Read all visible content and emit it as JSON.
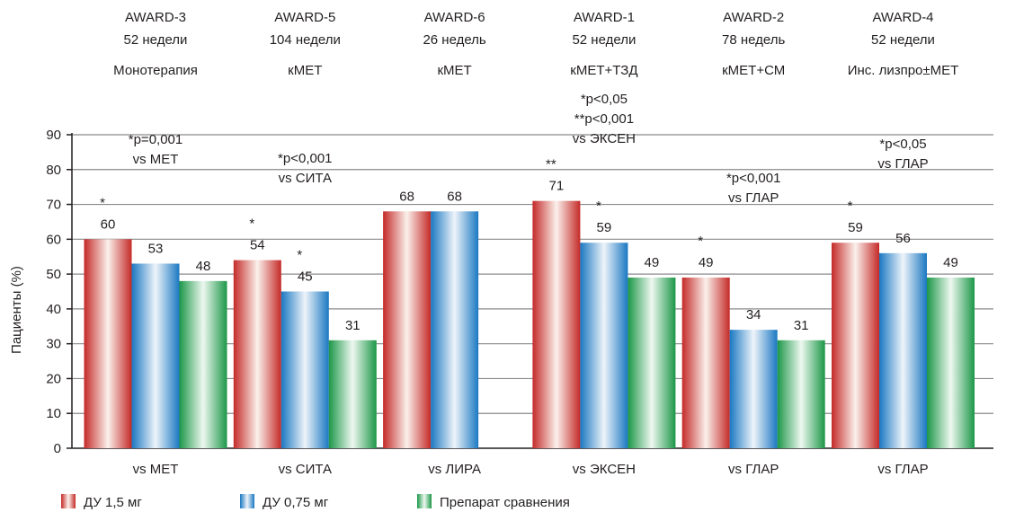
{
  "chart_data": {
    "type": "bar",
    "ylabel": "Пациенты (%)",
    "ylim": [
      0,
      90
    ],
    "yticks": [
      "0",
      "10",
      "20",
      "30",
      "40",
      "50",
      "60",
      "70",
      "80",
      "90"
    ],
    "grid": true,
    "legend_placement": "bottom-left",
    "series": [
      {
        "name": "ДУ 1,5 мг",
        "color": "#c8302e"
      },
      {
        "name": "ДУ 0,75 мг",
        "color": "#1d7cc4"
      },
      {
        "name": "Препарат сравнения",
        "color": "#1f9a4c"
      }
    ],
    "groups": [
      {
        "study": "AWARD-3",
        "duration": "52 недели",
        "therapy": "Монотерапия",
        "category": "vs МЕТ",
        "annotation": [
          "*p=0,001",
          "vs МЕТ"
        ],
        "bars": [
          {
            "series": 0,
            "value": 60,
            "label": "60",
            "mark": "*"
          },
          {
            "series": 1,
            "value": 53,
            "label": "53"
          },
          {
            "series": 2,
            "value": 48,
            "label": "48"
          }
        ]
      },
      {
        "study": "AWARD-5",
        "duration": "104 недели",
        "therapy": "кМЕТ",
        "category": "vs СИТА",
        "annotation": [
          "*p<0,001",
          "vs СИТА"
        ],
        "bars": [
          {
            "series": 0,
            "value": 54,
            "label": "54",
            "mark": "*"
          },
          {
            "series": 1,
            "value": 45,
            "label": "45",
            "mark": "*"
          },
          {
            "series": 2,
            "value": 31,
            "label": "31"
          }
        ]
      },
      {
        "study": "AWARD-6",
        "duration": "26 недель",
        "therapy": "кМЕТ",
        "category": "vs ЛИРА",
        "annotation": [],
        "bars": [
          {
            "series": 0,
            "value": 68,
            "label": "68"
          },
          {
            "series": 1,
            "value": 68,
            "label": "68"
          }
        ]
      },
      {
        "study": "AWARD-1",
        "duration": "52 недели",
        "therapy": "кМЕТ+ТЗД",
        "category": "vs ЭКСЕН",
        "annotation": [
          "*p<0,05",
          "**p<0,001",
          "vs ЭКСЕН"
        ],
        "bars": [
          {
            "series": 0,
            "value": 71,
            "label": "71",
            "mark": "**"
          },
          {
            "series": 1,
            "value": 59,
            "label": "59",
            "mark": "*"
          },
          {
            "series": 2,
            "value": 49,
            "label": "49"
          }
        ]
      },
      {
        "study": "AWARD-2",
        "duration": "78 недель",
        "therapy": "кМЕТ+СМ",
        "category": "vs ГЛАР",
        "annotation": [
          "*p<0,001",
          "vs ГЛАР"
        ],
        "bars": [
          {
            "series": 0,
            "value": 49,
            "label": "49",
            "mark": "*"
          },
          {
            "series": 1,
            "value": 34,
            "label": "34"
          },
          {
            "series": 2,
            "value": 31,
            "label": "31"
          }
        ]
      },
      {
        "study": "AWARD-4",
        "duration": "52 недели",
        "therapy": "Инс. лизпро±МЕТ",
        "category": "vs ГЛАР",
        "annotation": [
          "*p<0,05",
          "vs ГЛАР"
        ],
        "bars": [
          {
            "series": 0,
            "value": 59,
            "label": "59",
            "mark": "*"
          },
          {
            "series": 1,
            "value": 56,
            "label": "56"
          },
          {
            "series": 2,
            "value": 49,
            "label": "49"
          }
        ]
      }
    ]
  }
}
